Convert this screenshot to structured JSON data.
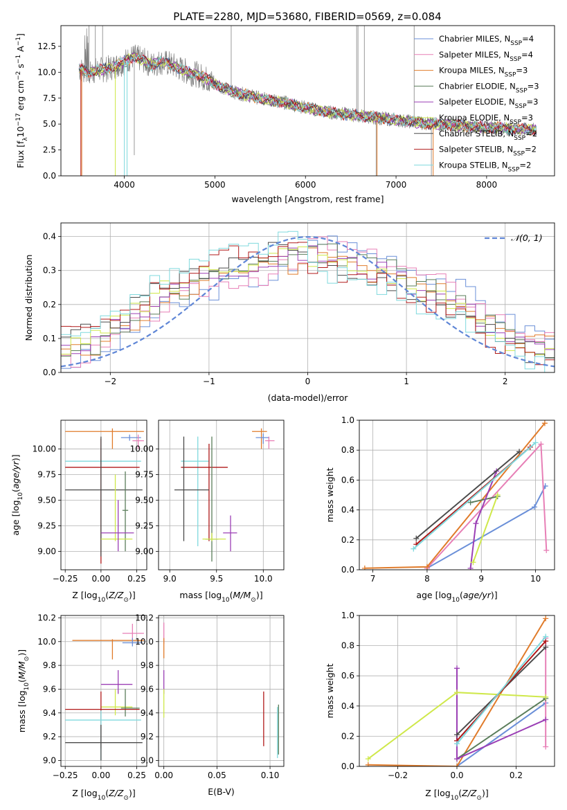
{
  "figure_title": "PLATE=2280, MJD=53680, FIBERID=0569, z=0.084",
  "colors": {
    "Chabrier MILES": "#6a8fd8",
    "Salpeter MILES": "#e77fb6",
    "Kroupa MILES": "#e07b2a",
    "Chabrier ELODIE": "#5a7d5a",
    "Salpeter ELODIE": "#9b3fb5",
    "Kroupa ELODIE": "#cfe84a",
    "Chabrier STELIB": "#4a4a4a",
    "Salpeter STELIB": "#b01818",
    "Kroupa STELIB": "#7fd9dd",
    "data": "#808080"
  },
  "chart_data": [
    {
      "id": "spectrum",
      "type": "line",
      "title": "PLATE=2280, MJD=53680, FIBERID=0569, z=0.084",
      "xlabel": "wavelength [Angstrom, rest frame]",
      "ylabel": "Flux [f",
      "xlim": [
        3300,
        8750
      ],
      "ylim": [
        0,
        14.5
      ],
      "xticks": [
        4000,
        5000,
        6000,
        7000,
        8000
      ],
      "yticks": [
        0.0,
        2.5,
        5.0,
        7.5,
        10.0,
        12.5
      ],
      "legend_position": "upper right",
      "series": [
        {
          "name": "Chabrier MILES",
          "label_main": "Chabrier MILES, N",
          "label_sub": "SSP",
          "label_tail": "=4"
        },
        {
          "name": "Salpeter MILES",
          "label_main": "Salpeter MILES, N",
          "label_sub": "SSP",
          "label_tail": "=4"
        },
        {
          "name": "Kroupa MILES",
          "label_main": "Kroupa MILES, N",
          "label_sub": "SSP",
          "label_tail": "=3"
        },
        {
          "name": "Chabrier ELODIE",
          "label_main": "Chabrier ELODIE, N",
          "label_sub": "SSP",
          "label_tail": "=3"
        },
        {
          "name": "Salpeter ELODIE",
          "label_main": "Salpeter ELODIE, N",
          "label_sub": "SSP",
          "label_tail": "=3"
        },
        {
          "name": "Kroupa ELODIE",
          "label_main": "Kroupa ELODIE, N",
          "label_sub": "SSP",
          "label_tail": "=3"
        },
        {
          "name": "Chabrier STELIB",
          "label_main": "Chabrier STELIB, N",
          "label_sub": "SSP",
          "label_tail": "=2"
        },
        {
          "name": "Salpeter STELIB",
          "label_main": "Salpeter STELIB, N",
          "label_sub": "SSP",
          "label_tail": "=2"
        },
        {
          "name": "Kroupa STELIB",
          "label_main": "Kroupa STELIB, N",
          "label_sub": "SSP",
          "label_tail": "=2"
        }
      ],
      "continuum": {
        "x": [
          3500,
          3600,
          3700,
          3800,
          3900,
          4000,
          4100,
          4200,
          4300,
          4400,
          4500,
          4600,
          4700,
          4800,
          4900,
          5000,
          5100,
          5200,
          5300,
          5400,
          5500,
          5600,
          5700,
          5800,
          5900,
          6000,
          6100,
          6200,
          6300,
          6400,
          6500,
          6600,
          6700,
          6800,
          6900,
          7000,
          7100,
          7200,
          7300,
          7400,
          7500,
          7600,
          7700,
          7800,
          7900,
          8000,
          8100,
          8200,
          8300,
          8400,
          8500
        ],
        "y": [
          10.3,
          10.0,
          10.2,
          10.3,
          10.6,
          11.0,
          11.5,
          11.2,
          10.7,
          11.0,
          10.8,
          10.4,
          10.0,
          9.8,
          9.4,
          8.9,
          8.5,
          8.1,
          7.9,
          7.7,
          7.5,
          7.3,
          7.2,
          7.0,
          6.8,
          6.6,
          6.4,
          6.2,
          6.1,
          6.0,
          5.9,
          5.8,
          5.7,
          5.6,
          5.5,
          5.4,
          5.3,
          5.2,
          5.1,
          5.0,
          4.95,
          4.9,
          4.85,
          4.8,
          4.75,
          4.7,
          4.65,
          4.6,
          4.55,
          4.5,
          4.45
        ]
      }
    },
    {
      "id": "residuals",
      "type": "line",
      "xlabel": "(data-model)/error",
      "ylabel": "Normed distribution",
      "xlim": [
        -2.5,
        2.5
      ],
      "ylim": [
        0,
        0.44
      ],
      "xticks": [
        -2,
        -1,
        0,
        1,
        2
      ],
      "yticks": [
        0.0,
        0.1,
        0.2,
        0.3,
        0.4
      ],
      "grid": true,
      "legend_position": "upper right",
      "gaussian_label": "𝒩(0, 1)",
      "bin_width": 0.1,
      "base_hist": [
        0.07,
        0.08,
        0.09,
        0.09,
        0.1,
        0.13,
        0.15,
        0.17,
        0.19,
        0.21,
        0.23,
        0.24,
        0.25,
        0.27,
        0.28,
        0.29,
        0.3,
        0.31,
        0.31,
        0.32,
        0.32,
        0.33,
        0.34,
        0.34,
        0.35,
        0.35,
        0.34,
        0.34,
        0.33,
        0.32,
        0.31,
        0.3,
        0.3,
        0.29,
        0.28,
        0.26,
        0.25,
        0.24,
        0.23,
        0.21,
        0.2,
        0.18,
        0.16,
        0.14,
        0.12,
        0.1,
        0.09,
        0.08,
        0.07,
        0.06
      ]
    },
    {
      "id": "age_vs_Z",
      "type": "scatter",
      "xlabel": "Z [log",
      "ylabel": "age  [log",
      "xlim": [
        -0.28,
        0.32
      ],
      "ylim": [
        8.82,
        10.28
      ],
      "xticks": [
        -0.25,
        0.0,
        0.25
      ],
      "yticks": [
        9.0,
        9.25,
        9.5,
        9.75,
        10.0
      ],
      "grid": true,
      "points": [
        {
          "s": "Kroupa MILES",
          "x": 0.08,
          "y": 10.17,
          "xlo": -0.25,
          "xhi": 0.3,
          "ylo": 10.0,
          "yhi": 10.2
        },
        {
          "s": "Chabrier MILES",
          "x": 0.2,
          "y": 10.11,
          "xlo": 0.14,
          "xhi": 0.28,
          "ylo": 10.08,
          "yhi": 10.14
        },
        {
          "s": "Salpeter MILES",
          "x": 0.26,
          "y": 10.08,
          "xlo": 0.22,
          "xhi": 0.3,
          "ylo": 10.0,
          "yhi": 10.14
        },
        {
          "s": "Kroupa STELIB",
          "x": 0.0,
          "y": 9.88,
          "xlo": -0.25,
          "xhi": 0.28,
          "ylo": 9.85,
          "yhi": 9.9
        },
        {
          "s": "Salpeter STELIB",
          "x": 0.0,
          "y": 9.82,
          "xlo": -0.25,
          "xhi": 0.27,
          "ylo": 8.88,
          "yhi": 10.1
        },
        {
          "s": "Chabrier STELIB",
          "x": 0.0,
          "y": 9.6,
          "xlo": -0.25,
          "xhi": 0.29,
          "ylo": 8.95,
          "yhi": 10.12
        },
        {
          "s": "Chabrier ELODIE",
          "x": 0.17,
          "y": 9.4,
          "xlo": 0.15,
          "xhi": 0.19,
          "ylo": 9.0,
          "yhi": 9.78
        },
        {
          "s": "Kroupa ELODIE",
          "x": 0.1,
          "y": 9.12,
          "xlo": 0.0,
          "xhi": 0.22,
          "ylo": 9.1,
          "yhi": 9.75
        },
        {
          "s": "Salpeter ELODIE",
          "x": 0.12,
          "y": 9.18,
          "xlo": 0.0,
          "xhi": 0.23,
          "ylo": 9.0,
          "yhi": 9.5
        }
      ]
    },
    {
      "id": "age_vs_mass",
      "type": "scatter",
      "xlabel": "mass [log",
      "ylabel": "",
      "xlim": [
        8.88,
        10.22
      ],
      "ylim": [
        8.82,
        10.28
      ],
      "xticks": [
        9.0,
        9.5,
        10.0
      ],
      "yticks": [
        9.0,
        9.25,
        9.5,
        9.75,
        10.0
      ],
      "grid": true,
      "points": [
        {
          "s": "Kroupa MILES",
          "x": 9.98,
          "y": 10.17,
          "xlo": 9.88,
          "xhi": 10.04,
          "ylo": 10.0,
          "yhi": 10.2
        },
        {
          "s": "Chabrier MILES",
          "x": 10.0,
          "y": 10.11,
          "xlo": 9.92,
          "xhi": 10.06,
          "ylo": 10.05,
          "yhi": 10.15
        },
        {
          "s": "Salpeter MILES",
          "x": 10.06,
          "y": 10.08,
          "xlo": 10.02,
          "xhi": 10.12,
          "ylo": 10.0,
          "yhi": 10.12
        },
        {
          "s": "Kroupa STELIB",
          "x": 9.3,
          "y": 9.88,
          "xlo": 9.12,
          "xhi": 9.42,
          "ylo": 9.05,
          "yhi": 10.12
        },
        {
          "s": "Salpeter STELIB",
          "x": 9.42,
          "y": 9.82,
          "xlo": 9.12,
          "xhi": 9.62,
          "ylo": 9.1,
          "yhi": 10.05
        },
        {
          "s": "Chabrier STELIB",
          "x": 9.15,
          "y": 9.6,
          "xlo": 9.05,
          "xhi": 9.42,
          "ylo": 9.1,
          "yhi": 10.12
        },
        {
          "s": "Chabrier ELODIE",
          "x": 9.45,
          "y": 9.12,
          "xlo": 9.38,
          "xhi": 9.52,
          "ylo": 8.9,
          "yhi": 10.12
        },
        {
          "s": "Kroupa ELODIE",
          "x": 9.45,
          "y": 9.12,
          "xlo": 9.35,
          "xhi": 9.6,
          "ylo": 9.1,
          "yhi": 9.18
        },
        {
          "s": "Salpeter ELODIE",
          "x": 9.65,
          "y": 9.18,
          "xlo": 9.57,
          "xhi": 9.72,
          "ylo": 9.0,
          "yhi": 9.35
        }
      ]
    },
    {
      "id": "weight_vs_age",
      "type": "line",
      "xlabel": "age  [log",
      "ylabel": "mass weight",
      "xlim": [
        6.75,
        10.35
      ],
      "ylim": [
        0,
        1.0
      ],
      "xticks": [
        7,
        8,
        9,
        10
      ],
      "yticks": [
        0.0,
        0.2,
        0.4,
        0.6,
        0.8,
        1.0
      ],
      "grid": true,
      "series": [
        {
          "s": "Chabrier MILES",
          "x": [
            8.0,
            9.98,
            10.18
          ],
          "y": [
            0.01,
            0.42,
            0.56
          ]
        },
        {
          "s": "Salpeter MILES",
          "x": [
            8.0,
            10.1,
            10.2
          ],
          "y": [
            0.01,
            0.84,
            0.13
          ]
        },
        {
          "s": "Kroupa MILES",
          "x": [
            6.85,
            8.0,
            10.17
          ],
          "y": [
            0.01,
            0.02,
            0.98
          ]
        },
        {
          "s": "Chabrier ELODIE",
          "x": [
            8.8,
            9.3
          ],
          "y": [
            0.45,
            0.49
          ]
        },
        {
          "s": "Salpeter ELODIE",
          "x": [
            8.8,
            8.9,
            9.28
          ],
          "y": [
            0.01,
            0.31,
            0.66
          ]
        },
        {
          "s": "Kroupa ELODIE",
          "x": [
            8.85,
            9.3
          ],
          "y": [
            0.05,
            0.5
          ]
        },
        {
          "s": "Chabrier STELIB",
          "x": [
            7.8,
            9.7
          ],
          "y": [
            0.21,
            0.79
          ]
        },
        {
          "s": "Salpeter STELIB",
          "x": [
            7.8,
            9.9
          ],
          "y": [
            0.17,
            0.82
          ]
        },
        {
          "s": "Kroupa STELIB",
          "x": [
            7.75,
            10.0
          ],
          "y": [
            0.14,
            0.85
          ]
        }
      ]
    },
    {
      "id": "mass_vs_Z",
      "type": "scatter",
      "xlabel": "Z [log",
      "ylabel": "mass [log",
      "xlim": [
        -0.28,
        0.32
      ],
      "ylim": [
        8.95,
        10.22
      ],
      "xticks": [
        -0.25,
        0.0,
        0.25
      ],
      "yticks": [
        9.0,
        9.2,
        9.4,
        9.6,
        9.8,
        10.0,
        10.2
      ],
      "grid": true,
      "points": [
        {
          "s": "Salpeter MILES",
          "x": 0.22,
          "y": 10.07,
          "xlo": 0.15,
          "xhi": 0.3,
          "ylo": 9.98,
          "yhi": 10.15
        },
        {
          "s": "Kroupa MILES",
          "x": 0.08,
          "y": 10.01,
          "xlo": -0.2,
          "xhi": 0.3,
          "ylo": 9.85,
          "yhi": 10.02
        },
        {
          "s": "Chabrier MILES",
          "x": 0.22,
          "y": 9.99,
          "xlo": 0.15,
          "xhi": 0.29,
          "ylo": 9.96,
          "yhi": 10.03
        },
        {
          "s": "Salpeter ELODIE",
          "x": 0.12,
          "y": 9.64,
          "xlo": 0.0,
          "xhi": 0.22,
          "ylo": 9.56,
          "yhi": 9.76
        },
        {
          "s": "Kroupa ELODIE",
          "x": 0.1,
          "y": 9.45,
          "xlo": 0.0,
          "xhi": 0.22,
          "ylo": 9.38,
          "yhi": 9.6
        },
        {
          "s": "Chabrier ELODIE",
          "x": 0.17,
          "y": 9.44,
          "xlo": 0.14,
          "xhi": 0.27,
          "ylo": 9.37,
          "yhi": 9.6
        },
        {
          "s": "Salpeter STELIB",
          "x": 0.0,
          "y": 9.43,
          "xlo": -0.25,
          "xhi": 0.27,
          "ylo": 9.1,
          "yhi": 9.58
        },
        {
          "s": "Kroupa STELIB",
          "x": 0.0,
          "y": 9.34,
          "xlo": -0.25,
          "xhi": 0.28,
          "ylo": 9.0,
          "yhi": 9.42
        },
        {
          "s": "Chabrier STELIB",
          "x": 0.0,
          "y": 9.15,
          "xlo": -0.25,
          "xhi": 0.29,
          "ylo": 9.0,
          "yhi": 9.3
        }
      ]
    },
    {
      "id": "mass_vs_ebv",
      "type": "scatter",
      "xlabel": "E(B-V)",
      "ylabel": "",
      "xlim": [
        -0.005,
        0.113
      ],
      "ylim": [
        8.95,
        10.22
      ],
      "xticks": [
        0.0,
        0.05,
        0.1
      ],
      "yticks": [
        9.0,
        9.2,
        9.4,
        9.6,
        9.8,
        10.0,
        10.2
      ],
      "grid": true,
      "points": [
        {
          "s": "Salpeter MILES",
          "x": 0.0,
          "y": 10.07,
          "ylo": 9.98,
          "yhi": 10.16
        },
        {
          "s": "Kroupa MILES",
          "x": 0.0,
          "y": 10.0,
          "ylo": 9.86,
          "yhi": 10.03
        },
        {
          "s": "Salpeter ELODIE",
          "x": 0.0,
          "y": 9.64,
          "ylo": 9.56,
          "yhi": 9.76
        },
        {
          "s": "Kroupa ELODIE",
          "x": 0.0,
          "y": 9.45,
          "ylo": 9.36,
          "yhi": 9.6
        },
        {
          "s": "Salpeter STELIB",
          "x": 0.094,
          "y": 9.35,
          "ylo": 9.12,
          "yhi": 9.58
        },
        {
          "s": "Chabrier ELODIE",
          "x": 0.108,
          "y": 9.3,
          "ylo": 9.05,
          "yhi": 9.47
        },
        {
          "s": "Kroupa STELIB",
          "x": 0.107,
          "y": 9.2,
          "ylo": 9.02,
          "yhi": 9.45
        }
      ]
    },
    {
      "id": "weight_vs_Z",
      "type": "line",
      "xlabel": "Z [log",
      "ylabel": "mass weight",
      "xlim": [
        -0.33,
        0.33
      ],
      "ylim": [
        0,
        1.0
      ],
      "xticks": [
        -0.2,
        0.0,
        0.2
      ],
      "yticks": [
        0.0,
        0.2,
        0.4,
        0.6,
        0.8,
        1.0
      ],
      "grid": true,
      "series": [
        {
          "s": "Chabrier MILES",
          "x": [
            0.0,
            0.3
          ],
          "y": [
            0.0,
            0.42
          ]
        },
        {
          "s": "Salpeter MILES",
          "x": [
            0.3,
            0.3
          ],
          "y": [
            0.13,
            0.85
          ]
        },
        {
          "s": "Kroupa MILES",
          "x": [
            -0.3,
            0.0,
            0.3
          ],
          "y": [
            0.01,
            0.0,
            0.98
          ]
        },
        {
          "s": "Chabrier ELODIE",
          "x": [
            0.0,
            0.3
          ],
          "y": [
            0.05,
            0.45
          ]
        },
        {
          "s": "Salpeter ELODIE",
          "x": [
            0.0,
            0.0,
            0.3
          ],
          "y": [
            0.65,
            0.05,
            0.31
          ]
        },
        {
          "s": "Kroupa ELODIE",
          "x": [
            -0.3,
            0.0,
            0.3
          ],
          "y": [
            0.05,
            0.49,
            0.46
          ]
        },
        {
          "s": "Chabrier STELIB",
          "x": [
            0.0,
            0.3
          ],
          "y": [
            0.21,
            0.79
          ]
        },
        {
          "s": "Salpeter STELIB",
          "x": [
            0.0,
            0.3
          ],
          "y": [
            0.17,
            0.83
          ]
        },
        {
          "s": "Kroupa STELIB",
          "x": [
            0.0,
            0.3
          ],
          "y": [
            0.15,
            0.86
          ]
        }
      ]
    }
  ]
}
